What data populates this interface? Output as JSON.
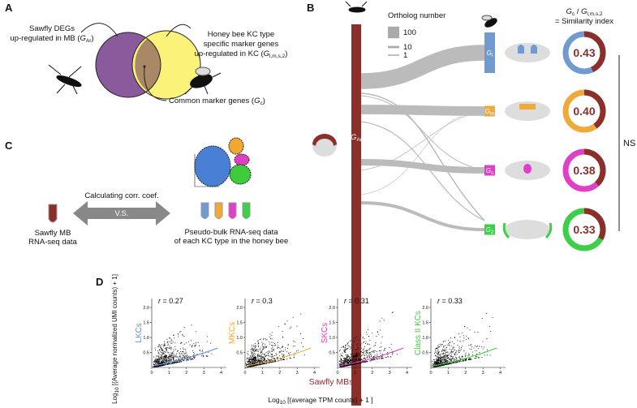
{
  "panel_a": {
    "label": "A",
    "sawfly": {
      "line1": "Sawfly DEGs",
      "line2": "up-regulated in MB (",
      "sym": "G",
      "sub": "Ar",
      "close": ")"
    },
    "honeybee": {
      "line1": "Honey bee KC type",
      "line2": "specific marker genes",
      "line3": "up-regulated in KC (",
      "sym": "G",
      "sub": "l,m,s,2",
      "close": ")"
    },
    "common": {
      "text": "Common marker genes (",
      "sym": "G",
      "sub": "c",
      "close": ")"
    }
  },
  "panel_b": {
    "label": "B",
    "legend": {
      "title": "Ortholog number",
      "values": [
        100,
        10,
        1
      ]
    },
    "source": {
      "sym": "G",
      "sub": "Ar"
    },
    "header": {
      "sym1": "G",
      "sub1": "c",
      "slash": " / ",
      "sym2": "G",
      "sub2": "l,m,s,2",
      "line2": "= Similarity index"
    },
    "targets": [
      {
        "sym": "G",
        "sub": "l",
        "color": "#6f9bd1",
        "orthologs": 140,
        "similarity": 0.43,
        "similarity_label": "0.43"
      },
      {
        "sym": "G",
        "sub": "m",
        "color": "#f0aa3a",
        "orthologs": 80,
        "similarity": 0.4,
        "similarity_label": "0.40"
      },
      {
        "sym": "G",
        "sub": "s",
        "color": "#e040c8",
        "orthologs": 50,
        "similarity": 0.38,
        "similarity_label": "0.38"
      },
      {
        "sym": "G",
        "sub": "2",
        "color": "#3ecf4a",
        "orthologs": 20,
        "similarity": 0.33,
        "similarity_label": "0.33"
      }
    ],
    "significance": "NS"
  },
  "panel_c": {
    "label": "C",
    "method": "Calculating corr. coef.",
    "versus": "V.S.",
    "left": [
      "Sawfly MB",
      "RNA-seq data"
    ],
    "right": [
      "Pseudo-bulk RNA-seq data",
      "of each KC type in the honey bee"
    ]
  },
  "panel_d": {
    "label": "D",
    "y_label": {
      "pre": "Log",
      "sub": "10",
      "post": " [(Average normalized UMI counts) + 1]"
    },
    "x_title": "Sawfly MBs",
    "x_label": {
      "pre": "Log",
      "sub": "10",
      "post": " [(average TPM counts) + 1 ]"
    },
    "r_symbol": "r",
    "equals": " = ",
    "xlim": [
      0,
      4.3
    ],
    "ylim": [
      0,
      2.3
    ],
    "xticks": [
      0,
      1,
      2,
      3,
      4
    ],
    "yticks": [
      {
        "value": 0.5,
        "label": "0.5"
      },
      {
        "value": 1.0,
        "label": "1.0"
      },
      {
        "value": 1.5,
        "label": "1.5"
      },
      {
        "value": 2.0,
        "label": "2.0"
      }
    ],
    "panels": [
      {
        "name": "LKCs",
        "color": "#5b8fd6",
        "r": 0.27
      },
      {
        "name": "MKCs",
        "color": "#f0a830",
        "r": 0.3
      },
      {
        "name": "SKCs",
        "color": "#e040c0",
        "r": 0.31
      },
      {
        "name": "Class II KCs",
        "color": "#3ecc3e",
        "r": 0.33
      }
    ]
  }
}
